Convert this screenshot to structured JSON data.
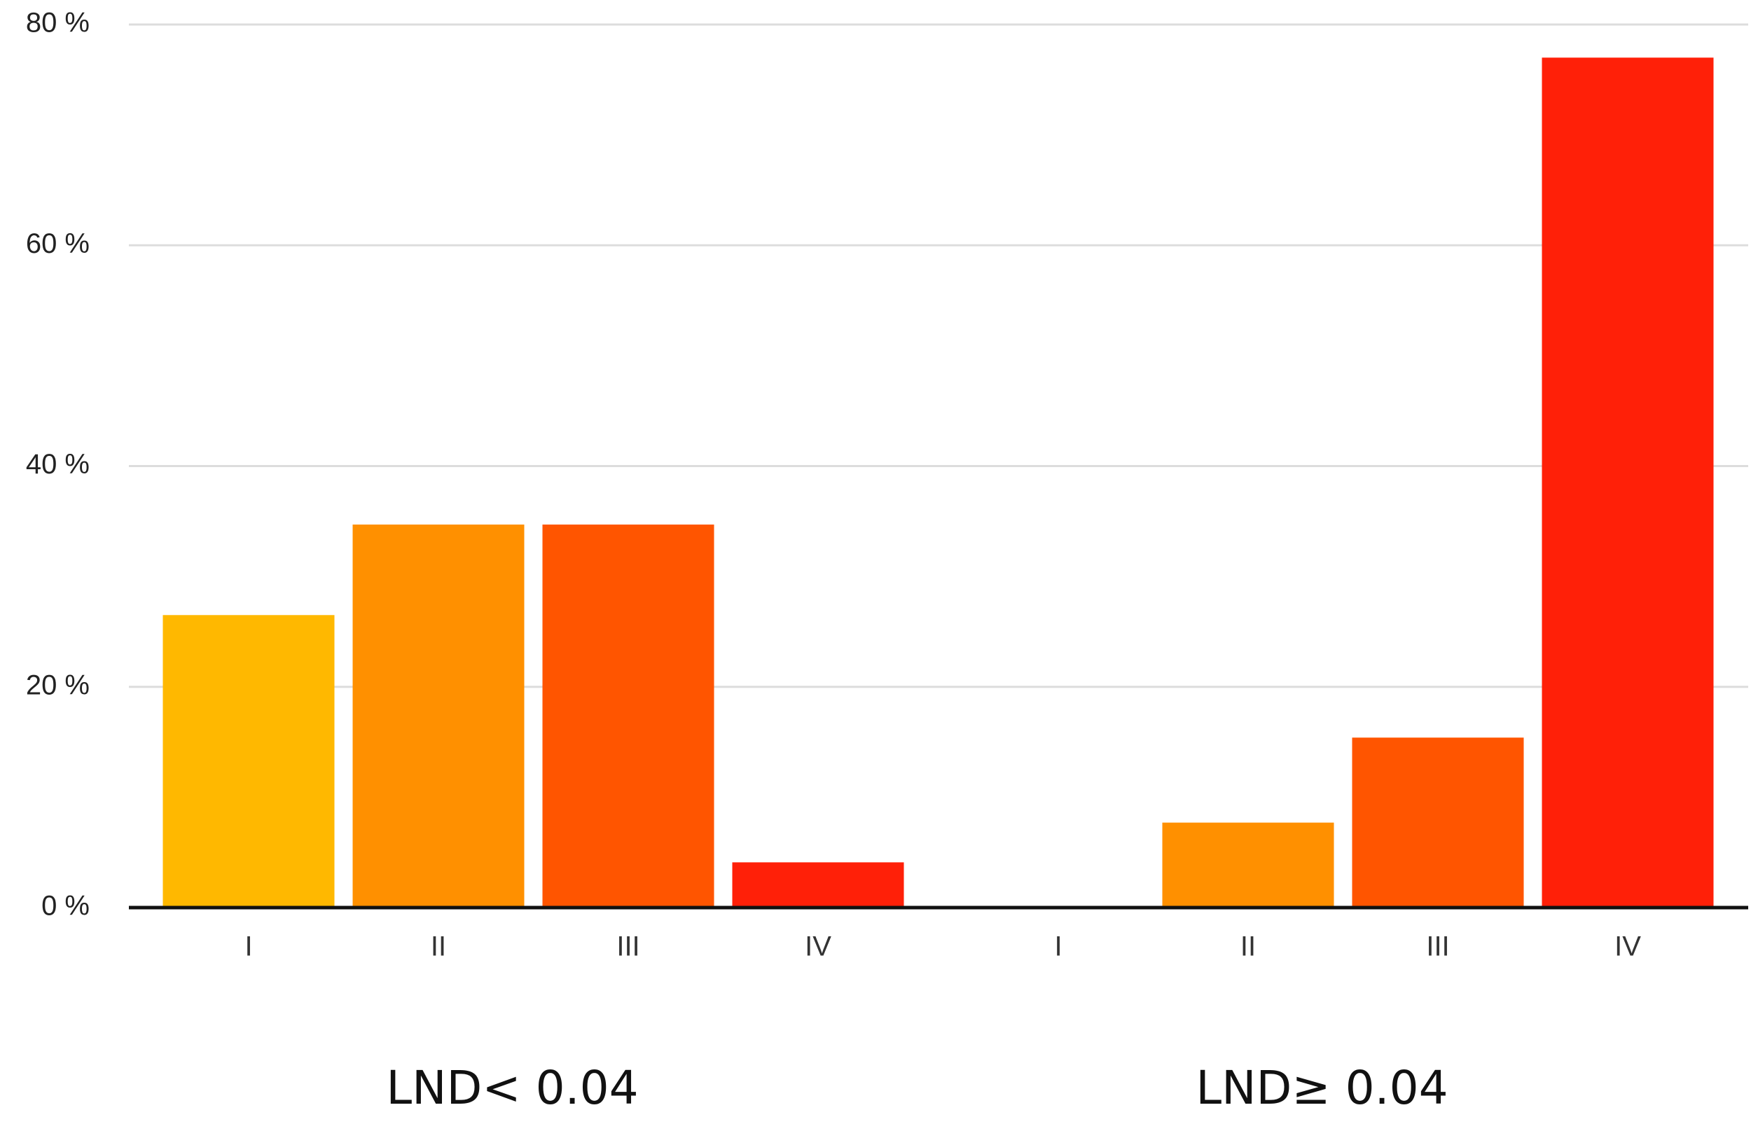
{
  "chart_data": {
    "type": "bar",
    "groups": [
      {
        "label": "LND< 0.04",
        "categories": [
          "I",
          "II",
          "III",
          "IV"
        ],
        "values": [
          26.5,
          34.7,
          34.7,
          4.1
        ]
      },
      {
        "label": "LND≥ 0.04",
        "categories": [
          "I",
          "II",
          "III",
          "IV"
        ],
        "values": [
          0,
          7.7,
          15.4,
          77
        ]
      }
    ],
    "colors": [
      "#ffb800",
      "#ff9000",
      "#ff5500",
      "#ff2008"
    ],
    "ylim": [
      0,
      80
    ],
    "yticks": [
      {
        "value": 0,
        "label": "0 %"
      },
      {
        "value": 20,
        "label": "20 %"
      },
      {
        "value": 40,
        "label": "40 %"
      },
      {
        "value": 60,
        "label": "60 %"
      },
      {
        "value": 80,
        "label": "80 %"
      }
    ],
    "grid": true
  }
}
